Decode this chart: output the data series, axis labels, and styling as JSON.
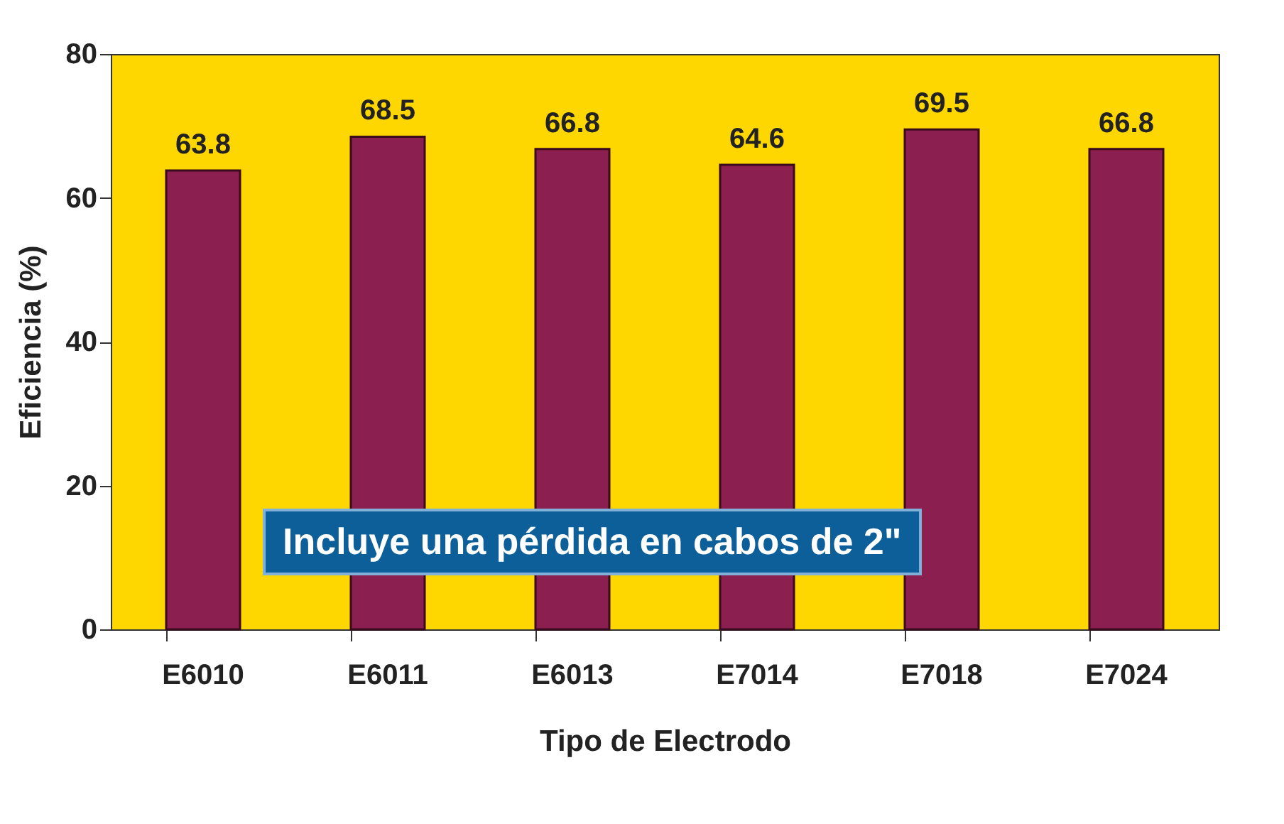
{
  "chart_data": {
    "type": "bar",
    "xlabel": "Tipo de Electrodo",
    "ylabel": "Eficiencia (%)",
    "categories": [
      "E6010",
      "E6011",
      "E6013",
      "E7014",
      "E7018",
      "E7024"
    ],
    "values": [
      63.8,
      68.5,
      66.8,
      64.6,
      69.5,
      66.8
    ],
    "color": "#8b1f4f",
    "ylim": [
      0,
      80
    ],
    "yticks": [
      0,
      20,
      40,
      60,
      80
    ],
    "data_labels": true,
    "annotations": [
      "Incluye una pérdida en cabos de 2\""
    ]
  }
}
